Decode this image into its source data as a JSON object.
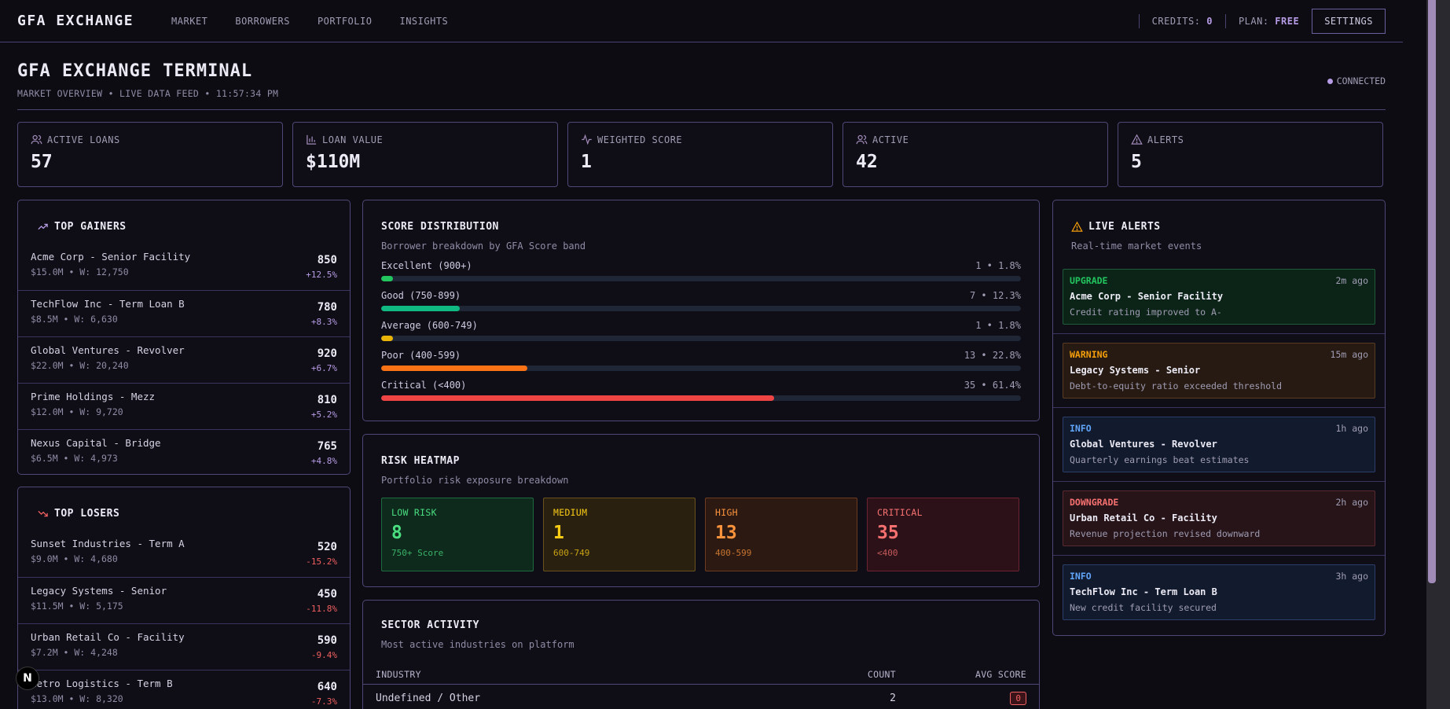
{
  "nav": {
    "brand": "GFA EXCHANGE",
    "links": [
      "MARKET",
      "BORROWERS",
      "PORTFOLIO",
      "INSIGHTS"
    ],
    "credits_label": "CREDITS:",
    "credits_value": "0",
    "plan_label": "PLAN:",
    "plan_value": "FREE",
    "settings": "SETTINGS"
  },
  "header": {
    "title": "GFA EXCHANGE TERMINAL",
    "subtitle": "MARKET OVERVIEW • LIVE DATA FEED • 11:57:34 PM",
    "status": "CONNECTED"
  },
  "stats": [
    {
      "icon": "users-icon",
      "label": "ACTIVE LOANS",
      "value": "57"
    },
    {
      "icon": "bar-chart-icon",
      "label": "LOAN VALUE",
      "value": "$110M"
    },
    {
      "icon": "activity-icon",
      "label": "WEIGHTED SCORE",
      "value": "1"
    },
    {
      "icon": "users-icon",
      "label": "ACTIVE",
      "value": "42"
    },
    {
      "icon": "alert-triangle-icon",
      "label": "ALERTS",
      "value": "5"
    }
  ],
  "gainers": {
    "title": "TOP GAINERS",
    "items": [
      {
        "name": "Acme Corp - Senior Facility",
        "meta": "$15.0M • W: 12,750",
        "score": "850",
        "change": "+12.5%"
      },
      {
        "name": "TechFlow Inc - Term Loan B",
        "meta": "$8.5M • W: 6,630",
        "score": "780",
        "change": "+8.3%"
      },
      {
        "name": "Global Ventures - Revolver",
        "meta": "$22.0M • W: 20,240",
        "score": "920",
        "change": "+6.7%"
      },
      {
        "name": "Prime Holdings - Mezz",
        "meta": "$12.0M • W: 9,720",
        "score": "810",
        "change": "+5.2%"
      },
      {
        "name": "Nexus Capital - Bridge",
        "meta": "$6.5M • W: 4,973",
        "score": "765",
        "change": "+4.8%"
      }
    ]
  },
  "losers": {
    "title": "TOP LOSERS",
    "items": [
      {
        "name": "Sunset Industries - Term A",
        "meta": "$9.0M • W: 4,680",
        "score": "520",
        "change": "-15.2%"
      },
      {
        "name": "Legacy Systems - Senior",
        "meta": "$11.5M • W: 5,175",
        "score": "450",
        "change": "-11.8%"
      },
      {
        "name": "Urban Retail Co - Facility",
        "meta": "$7.2M • W: 4,248",
        "score": "590",
        "change": "-9.4%"
      },
      {
        "name": "Metro Logistics - Term B",
        "meta": "$13.0M • W: 8,320",
        "score": "640",
        "change": "-7.3%"
      }
    ]
  },
  "distribution": {
    "title": "SCORE DISTRIBUTION",
    "subtitle": "Borrower breakdown by GFA Score band",
    "bands": [
      {
        "label": "Excellent (900+)",
        "count_text": "1 • 1.8%",
        "pct": 1.8,
        "color": "#22c55e"
      },
      {
        "label": "Good (750-899)",
        "count_text": "7 • 12.3%",
        "pct": 12.3,
        "color": "#10b981"
      },
      {
        "label": "Average (600-749)",
        "count_text": "1 • 1.8%",
        "pct": 1.8,
        "color": "#eab308"
      },
      {
        "label": "Poor (400-599)",
        "count_text": "13 • 22.8%",
        "pct": 22.8,
        "color": "#f97316"
      },
      {
        "label": "Critical (<400)",
        "count_text": "35 • 61.4%",
        "pct": 61.4,
        "color": "#ef4444"
      }
    ]
  },
  "heatmap": {
    "title": "RISK HEATMAP",
    "subtitle": "Portfolio risk exposure breakdown",
    "cells": [
      {
        "label": "LOW RISK",
        "value": "8",
        "range": "750+ Score",
        "accent": "#4ade80",
        "bg": "#0d2a1c",
        "border": "#1f6a3f"
      },
      {
        "label": "MEDIUM",
        "value": "1",
        "range": "600-749",
        "accent": "#facc15",
        "bg": "#2a2010",
        "border": "#6a5220"
      },
      {
        "label": "HIGH",
        "value": "13",
        "range": "400-599",
        "accent": "#fb923c",
        "bg": "#2c1a12",
        "border": "#6e3a20"
      },
      {
        "label": "CRITICAL",
        "value": "35",
        "range": "<400",
        "accent": "#f87171",
        "bg": "#2c1218",
        "border": "#6e2430"
      }
    ]
  },
  "sector": {
    "title": "SECTOR ACTIVITY",
    "subtitle": "Most active industries on platform",
    "col_industry": "INDUSTRY",
    "col_count": "COUNT",
    "col_avg": "AVG SCORE",
    "rows": [
      {
        "industry": "Undefined / Other",
        "count": "2",
        "avg": "0"
      }
    ]
  },
  "alerts": {
    "title": "LIVE ALERTS",
    "subtitle": "Real-time market events",
    "items": [
      {
        "type": "UPGRADE",
        "time": "2m ago",
        "title": "Acme Corp - Senior Facility",
        "desc": "Credit rating improved to A-",
        "accent": "#22c55e",
        "bg": "#0c2418",
        "border": "#1f5a3a"
      },
      {
        "type": "WARNING",
        "time": "15m ago",
        "title": "Legacy Systems - Senior",
        "desc": "Debt-to-equity ratio exceeded threshold",
        "accent": "#f59e0b",
        "bg": "#261a12",
        "border": "#5a3c22"
      },
      {
        "type": "INFO",
        "time": "1h ago",
        "title": "Global Ventures - Revolver",
        "desc": "Quarterly earnings beat estimates",
        "accent": "#60a5fa",
        "bg": "#121a2e",
        "border": "#2c3e6a"
      },
      {
        "type": "DOWNGRADE",
        "time": "2h ago",
        "title": "Urban Retail Co - Facility",
        "desc": "Revenue projection revised downward",
        "accent": "#f87171",
        "bg": "#261418",
        "border": "#5a2a32"
      },
      {
        "type": "INFO",
        "time": "3h ago",
        "title": "TechFlow Inc - Term Loan B",
        "desc": "New credit facility secured",
        "accent": "#60a5fa",
        "bg": "#121a2e",
        "border": "#2c3e6a"
      }
    ]
  },
  "dev_badge": "N"
}
